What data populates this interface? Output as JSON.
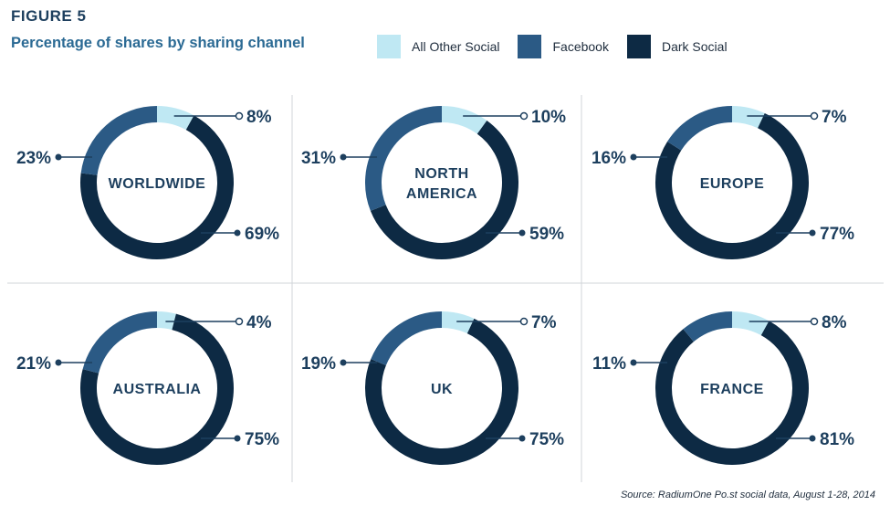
{
  "figure_label": "FIGURE 5",
  "chart_data": {
    "type": "pie",
    "title": "Percentage of shares by sharing channel",
    "series_names": [
      "All Other Social",
      "Facebook",
      "Dark Social"
    ],
    "colors": {
      "All Other Social": "#bfe8f3",
      "Facebook": "#2b5a85",
      "Dark Social": "#0d2a44"
    },
    "legend_position": "top",
    "charts": [
      {
        "region": [
          "WORLDWIDE"
        ],
        "values": {
          "All Other Social": 8,
          "Facebook": 23,
          "Dark Social": 69
        },
        "labels": {
          "other": "8%",
          "facebook": "23%",
          "dark": "69%"
        }
      },
      {
        "region": [
          "NORTH",
          "AMERICA"
        ],
        "values": {
          "All Other Social": 10,
          "Facebook": 31,
          "Dark Social": 59
        },
        "labels": {
          "other": "10%",
          "facebook": "31%",
          "dark": "59%"
        }
      },
      {
        "region": [
          "EUROPE"
        ],
        "values": {
          "All Other Social": 7,
          "Facebook": 16,
          "Dark Social": 77
        },
        "labels": {
          "other": "7%",
          "facebook": "16%",
          "dark": "77%"
        }
      },
      {
        "region": [
          "AUSTRALIA"
        ],
        "values": {
          "All Other Social": 4,
          "Facebook": 21,
          "Dark Social": 75
        },
        "labels": {
          "other": "4%",
          "facebook": "21%",
          "dark": "75%"
        }
      },
      {
        "region": [
          "UK"
        ],
        "values": {
          "All Other Social": 7,
          "Facebook": 19,
          "Dark Social": 75
        },
        "labels": {
          "other": "7%",
          "facebook": "19%",
          "dark": "75%"
        }
      },
      {
        "region": [
          "FRANCE"
        ],
        "values": {
          "All Other Social": 8,
          "Facebook": 11,
          "Dark Social": 81
        },
        "labels": {
          "other": "8%",
          "facebook": "11%",
          "dark": "81%"
        }
      }
    ]
  },
  "legend": [
    {
      "label": "All Other Social",
      "color": "#bfe8f3"
    },
    {
      "label": "Facebook",
      "color": "#2b5a85"
    },
    {
      "label": "Dark Social",
      "color": "#0d2a44"
    }
  ],
  "source": "Source: RadiumOne Po.st social data, August 1-28, 2014"
}
